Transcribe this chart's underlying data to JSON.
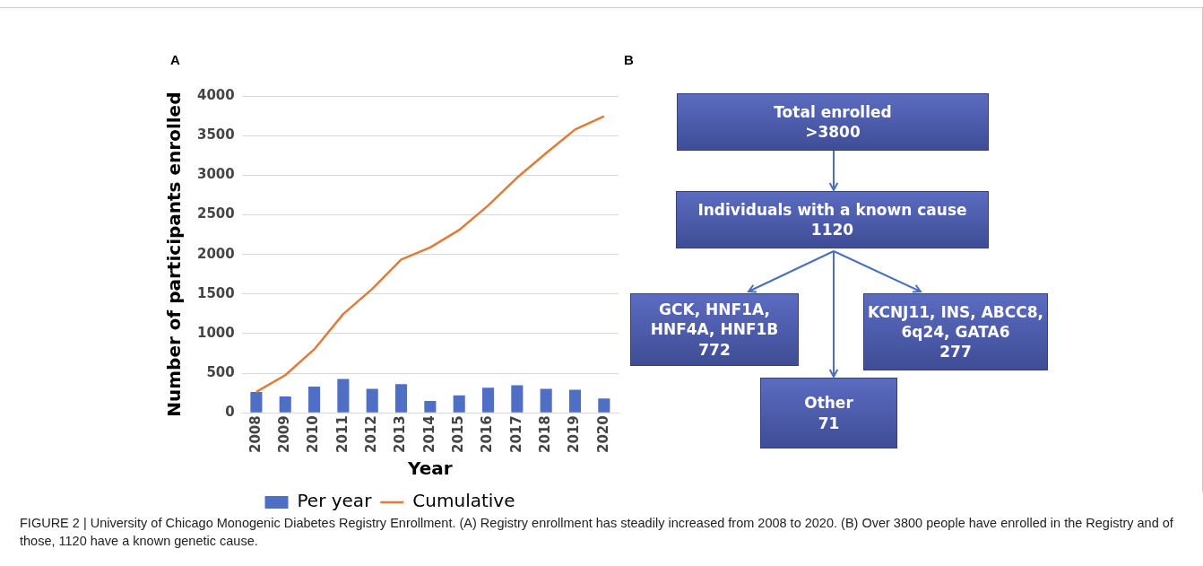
{
  "chart_data": [
    {
      "type": "bar",
      "title": "A",
      "xlabel": "Year",
      "ylabel": "Number of participants enrolled",
      "categories": [
        "2008",
        "2009",
        "2010",
        "2011",
        "2012",
        "2013",
        "2014",
        "2015",
        "2016",
        "2017",
        "2018",
        "2019",
        "2020"
      ],
      "series": [
        {
          "name": "Per year",
          "color": "#4f6fc4",
          "values": [
            264,
            207,
            330,
            427,
            304,
            361,
            150,
            220,
            317,
            348,
            304,
            291,
            181
          ]
        },
        {
          "name": "Cumulative",
          "type": "line",
          "color": "#e07b39",
          "values": [
            264,
            476,
            802,
            1247,
            1564,
            1934,
            2088,
            2308,
            2617,
            2969,
            3278,
            3577,
            3744
          ]
        }
      ],
      "ylim": [
        0,
        4000
      ],
      "yticks": [
        0,
        500,
        1000,
        1500,
        2000,
        2500,
        3000,
        3500,
        4000
      ],
      "grid": "y",
      "legend": "bottom",
      "marker": "none",
      "line_style": "solid",
      "annotations": [
        "FIGURE 2 | University of Chicago Monogenic Diabetes Registry Enrollment. (A) Registry enrollment has steadily increased from 2008 to 2020. (B) Over 3800 people have enrolled in the Registry and of those, 1120 have a known genetic cause."
      ]
    },
    {
      "type": "other",
      "title": "B",
      "annotations": [
        "Total enrolled\n>3800",
        "Individuals with a known cause\n1120",
        "GCK, HNF1A,\nHNF4A, HNF1B\n772",
        "KCNJ11, INS, ABCC8,\n6q24, GATA6\n277",
        "Other\n71"
      ]
    }
  ]
}
